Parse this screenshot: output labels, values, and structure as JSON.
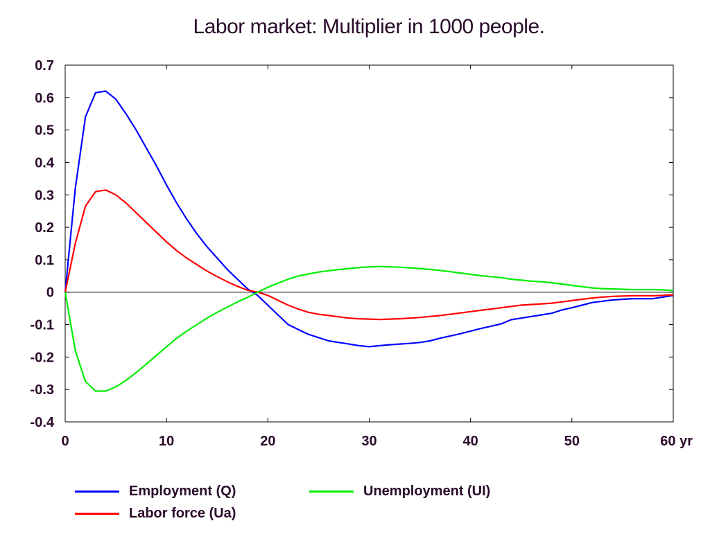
{
  "chart_data": {
    "type": "line",
    "title": "Labor market: Multiplier in 1000 people.",
    "x_unit_label": "yr",
    "xlim": [
      0,
      60
    ],
    "ylim": [
      -0.4,
      0.7
    ],
    "x_ticks": [
      0,
      10,
      20,
      30,
      40,
      50,
      60
    ],
    "y_ticks": [
      0.7,
      0.6,
      0.5,
      0.4,
      0.3,
      0.2,
      0.1,
      0,
      -0.1,
      -0.2,
      -0.3,
      -0.4
    ],
    "grid": false,
    "legend_position": "bottom",
    "series": [
      {
        "name": "Employment (Q)",
        "color": "#0000ff",
        "x": [
          0,
          1,
          2,
          3,
          4,
          5,
          6,
          7,
          8,
          9,
          10,
          11,
          12,
          13,
          14,
          15,
          16,
          17,
          18,
          19,
          20,
          21,
          22,
          23,
          24,
          25,
          26,
          27,
          28,
          29,
          30,
          31,
          32,
          33,
          34,
          35,
          36,
          37,
          38,
          39,
          40,
          41,
          42,
          43,
          44,
          45,
          46,
          47,
          48,
          49,
          50,
          51,
          52,
          53,
          54,
          55,
          56,
          57,
          58,
          59,
          60
        ],
        "values": [
          0,
          0.32,
          0.54,
          0.615,
          0.62,
          0.595,
          0.55,
          0.5,
          0.445,
          0.39,
          0.33,
          0.275,
          0.225,
          0.18,
          0.14,
          0.105,
          0.07,
          0.04,
          0.01,
          -0.01,
          -0.04,
          -0.07,
          -0.1,
          -0.115,
          -0.13,
          -0.14,
          -0.15,
          -0.155,
          -0.16,
          -0.165,
          -0.168,
          -0.165,
          -0.162,
          -0.16,
          -0.158,
          -0.155,
          -0.15,
          -0.142,
          -0.135,
          -0.128,
          -0.12,
          -0.112,
          -0.105,
          -0.098,
          -0.085,
          -0.08,
          -0.075,
          -0.07,
          -0.065,
          -0.055,
          -0.048,
          -0.04,
          -0.032,
          -0.028,
          -0.024,
          -0.022,
          -0.02,
          -0.02,
          -0.02,
          -0.015,
          -0.01
        ]
      },
      {
        "name": "Labor force (Ua)",
        "color": "#ff0000",
        "x": [
          0,
          1,
          2,
          3,
          4,
          5,
          6,
          7,
          8,
          9,
          10,
          11,
          12,
          13,
          14,
          15,
          16,
          17,
          18,
          19,
          20,
          21,
          22,
          23,
          24,
          25,
          26,
          27,
          28,
          29,
          30,
          31,
          32,
          33,
          34,
          35,
          36,
          37,
          38,
          39,
          40,
          41,
          42,
          43,
          44,
          45,
          46,
          47,
          48,
          49,
          50,
          51,
          52,
          53,
          54,
          55,
          56,
          57,
          58,
          59,
          60
        ],
        "values": [
          0,
          0.15,
          0.265,
          0.31,
          0.315,
          0.3,
          0.275,
          0.245,
          0.215,
          0.185,
          0.155,
          0.128,
          0.105,
          0.085,
          0.065,
          0.048,
          0.032,
          0.018,
          0.006,
          0,
          -0.01,
          -0.025,
          -0.04,
          -0.052,
          -0.062,
          -0.068,
          -0.072,
          -0.076,
          -0.08,
          -0.082,
          -0.083,
          -0.084,
          -0.083,
          -0.082,
          -0.08,
          -0.078,
          -0.075,
          -0.072,
          -0.068,
          -0.064,
          -0.06,
          -0.056,
          -0.052,
          -0.048,
          -0.044,
          -0.04,
          -0.038,
          -0.036,
          -0.034,
          -0.03,
          -0.026,
          -0.022,
          -0.018,
          -0.015,
          -0.013,
          -0.012,
          -0.011,
          -0.011,
          -0.011,
          -0.01,
          -0.008
        ]
      },
      {
        "name": "Unemployment (UI)",
        "color": "#00ee00",
        "x": [
          0,
          1,
          2,
          3,
          4,
          5,
          6,
          7,
          8,
          9,
          10,
          11,
          12,
          13,
          14,
          15,
          16,
          17,
          18,
          19,
          20,
          21,
          22,
          23,
          24,
          25,
          26,
          27,
          28,
          29,
          30,
          31,
          32,
          33,
          34,
          35,
          36,
          37,
          38,
          39,
          40,
          41,
          42,
          43,
          44,
          45,
          46,
          47,
          48,
          49,
          50,
          51,
          52,
          53,
          54,
          55,
          56,
          57,
          58,
          59,
          60
        ],
        "values": [
          0,
          -0.18,
          -0.275,
          -0.305,
          -0.305,
          -0.292,
          -0.272,
          -0.248,
          -0.222,
          -0.195,
          -0.168,
          -0.142,
          -0.12,
          -0.1,
          -0.08,
          -0.062,
          -0.046,
          -0.03,
          -0.016,
          0,
          0.015,
          0.028,
          0.04,
          0.05,
          0.056,
          0.062,
          0.066,
          0.07,
          0.073,
          0.076,
          0.078,
          0.079,
          0.078,
          0.077,
          0.075,
          0.073,
          0.07,
          0.067,
          0.063,
          0.059,
          0.055,
          0.051,
          0.048,
          0.045,
          0.04,
          0.037,
          0.034,
          0.032,
          0.029,
          0.025,
          0.021,
          0.017,
          0.013,
          0.011,
          0.01,
          0.009,
          0.008,
          0.008,
          0.008,
          0.007,
          0.005
        ]
      }
    ]
  }
}
